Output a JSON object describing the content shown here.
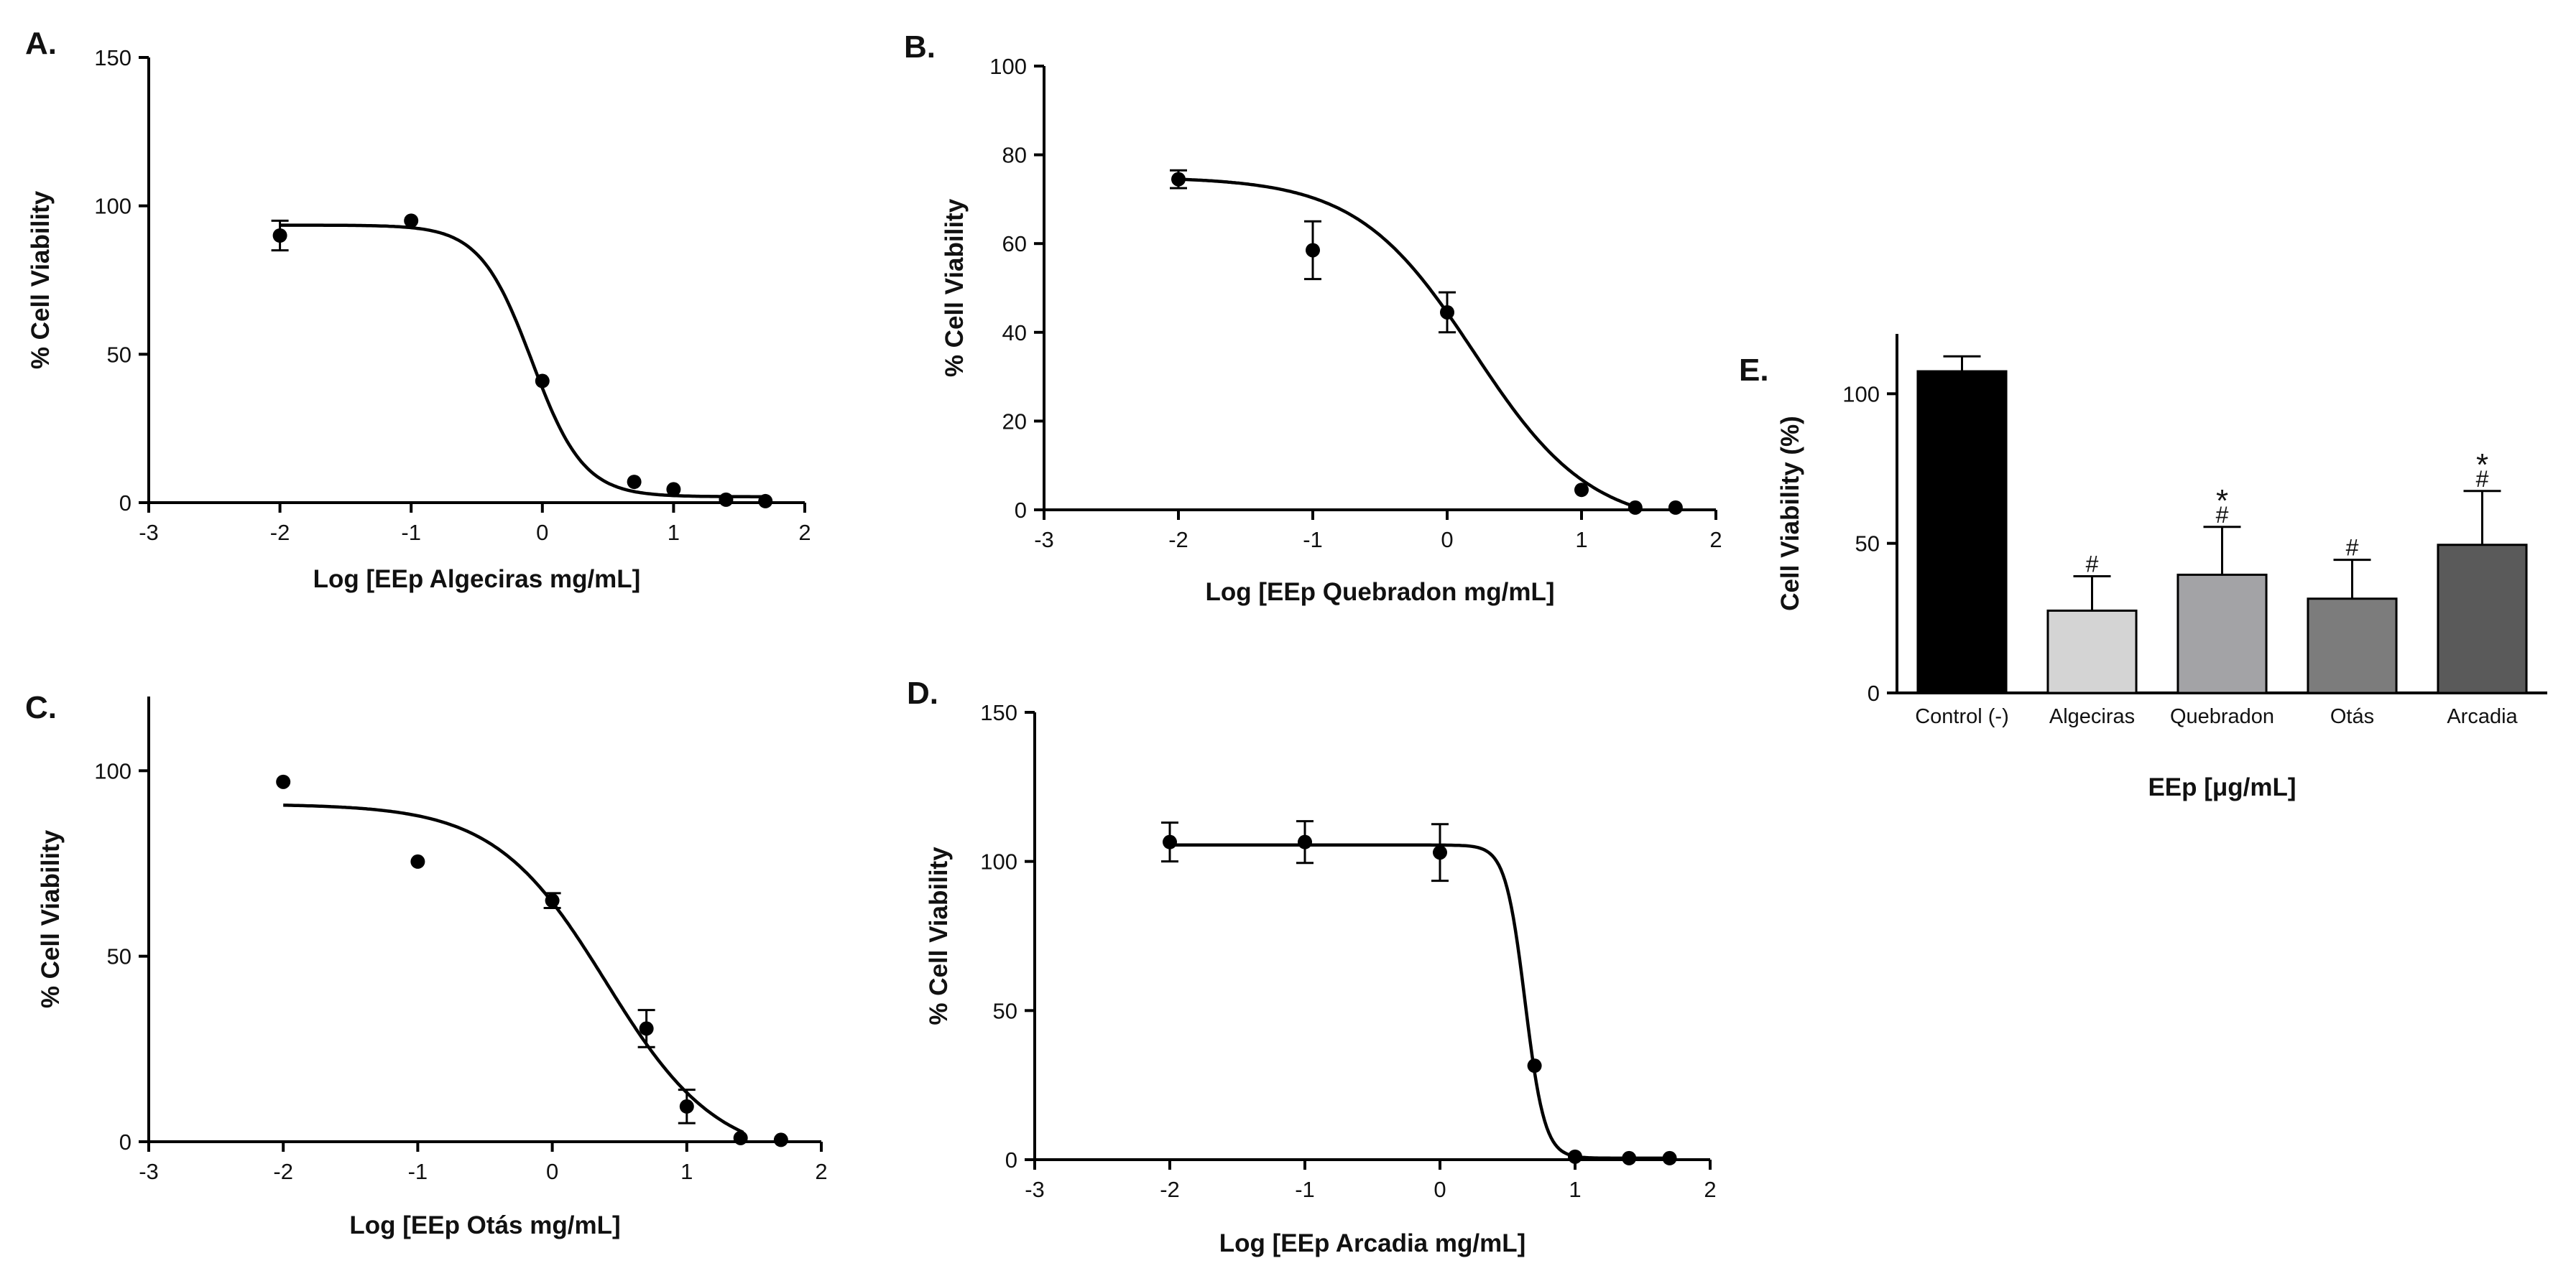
{
  "chart_data": [
    {
      "panel": "A.",
      "type": "scatter",
      "fit": "sigmoid",
      "xlabel": "Log [EEp Algeciras mg/mL]",
      "ylabel": "% Cell Viability",
      "xlim": [
        -3,
        2
      ],
      "ylim": [
        0,
        150
      ],
      "xticks": [
        -3,
        -2,
        -1,
        0,
        1,
        2
      ],
      "yticks": [
        0,
        50,
        100,
        150
      ],
      "points": [
        {
          "x": -2,
          "y": 90,
          "err": 5
        },
        {
          "x": -1,
          "y": 95,
          "err": 0
        },
        {
          "x": 0,
          "y": 41,
          "err": 0
        },
        {
          "x": 0.7,
          "y": 7,
          "err": 0
        },
        {
          "x": 1,
          "y": 4.5,
          "err": 0
        },
        {
          "x": 1.4,
          "y": 1,
          "err": 0
        },
        {
          "x": 1.7,
          "y": 0.5,
          "err": 0
        }
      ],
      "curve": {
        "top": 93.5,
        "bottom": 2,
        "logIC50": -0.08,
        "hill": 2.2,
        "xrange": [
          -2,
          1.7
        ]
      }
    },
    {
      "panel": "B.",
      "type": "scatter",
      "fit": "sigmoid",
      "xlabel": "Log [EEp Quebradon mg/mL]",
      "ylabel": "% Cell Viability",
      "xlim": [
        -3,
        2
      ],
      "ylim": [
        0,
        100
      ],
      "xticks": [
        -3,
        -2,
        -1,
        0,
        1,
        2
      ],
      "yticks": [
        0,
        20,
        40,
        60,
        80,
        100
      ],
      "points": [
        {
          "x": -2,
          "y": 74.5,
          "err": 2
        },
        {
          "x": -1,
          "y": 58.5,
          "err": 6.5
        },
        {
          "x": 0,
          "y": 44.5,
          "err": 4.5
        },
        {
          "x": 1,
          "y": 4.5,
          "err": 0
        },
        {
          "x": 1.4,
          "y": 0.5,
          "err": 0
        },
        {
          "x": 1.7,
          "y": 0.5,
          "err": 0
        }
      ],
      "curve": {
        "top": 75,
        "bottom": -4,
        "logIC50": 0.2,
        "hill": 1.0,
        "xrange": [
          -2,
          1.45
        ]
      }
    },
    {
      "panel": "C.",
      "type": "scatter",
      "fit": "sigmoid",
      "xlabel": "Log [EEp Otás mg/mL]",
      "ylabel": "% Cell Viability",
      "xlim": [
        -3,
        2
      ],
      "ylim": [
        0,
        120
      ],
      "xticks": [
        -3,
        -2,
        -1,
        0,
        1,
        2
      ],
      "yticks": [
        0,
        50,
        100
      ],
      "points": [
        {
          "x": -2,
          "y": 97,
          "err": 0
        },
        {
          "x": -1,
          "y": 75.5,
          "err": 0
        },
        {
          "x": 0,
          "y": 65,
          "err": 2
        },
        {
          "x": 0.7,
          "y": 30.5,
          "err": 5
        },
        {
          "x": 1,
          "y": 9.5,
          "err": 4.5
        },
        {
          "x": 1.4,
          "y": 1,
          "err": 0
        },
        {
          "x": 1.7,
          "y": 0.5,
          "err": 0
        }
      ],
      "curve": {
        "top": 91,
        "bottom": -5,
        "logIC50": 0.4,
        "hill": 1.05,
        "xrange": [
          -2,
          1.42
        ]
      }
    },
    {
      "panel": "D.",
      "type": "scatter",
      "fit": "sigmoid",
      "xlabel": "Log [EEp Arcadia mg/mL]",
      "ylabel": "% Cell Viability",
      "xlim": [
        -3,
        2
      ],
      "ylim": [
        0,
        150
      ],
      "xticks": [
        -3,
        -2,
        -1,
        0,
        1,
        2
      ],
      "yticks": [
        0,
        50,
        100,
        150
      ],
      "points": [
        {
          "x": -2,
          "y": 106.5,
          "err": 6.5
        },
        {
          "x": -1,
          "y": 106.5,
          "err": 7
        },
        {
          "x": 0,
          "y": 103,
          "err": 9.5
        },
        {
          "x": 0.7,
          "y": 31.5,
          "err": 0
        },
        {
          "x": 1,
          "y": 1,
          "err": 0
        },
        {
          "x": 1.4,
          "y": 0.5,
          "err": 0
        },
        {
          "x": 1.7,
          "y": 0.5,
          "err": 0
        }
      ],
      "curve": {
        "top": 105.5,
        "bottom": 0.5,
        "logIC50": 0.63,
        "hill": 6.0,
        "xrange": [
          -2,
          1.7
        ]
      }
    },
    {
      "panel": "E.",
      "type": "bar",
      "xlabel": "EEp [μg/mL]",
      "ylabel": "Cell Viability (%)",
      "ylim": [
        0,
        120
      ],
      "yticks": [
        0,
        50,
        100
      ],
      "categories": [
        "Control (-)",
        "Algeciras",
        "Quebradon",
        "Otás",
        "Arcadia"
      ],
      "values": [
        107.5,
        27.5,
        39.5,
        31.5,
        49.5
      ],
      "errors": [
        5,
        11.5,
        16,
        13,
        18
      ],
      "colors": [
        "#000000",
        "#d4d4d4",
        "#a3a3a6",
        "#7c7c7c",
        "#5a5a5a"
      ],
      "annotations": [
        [],
        [
          "#"
        ],
        [
          "*",
          "#"
        ],
        [
          "#"
        ],
        [
          "*",
          "#"
        ]
      ]
    }
  ]
}
